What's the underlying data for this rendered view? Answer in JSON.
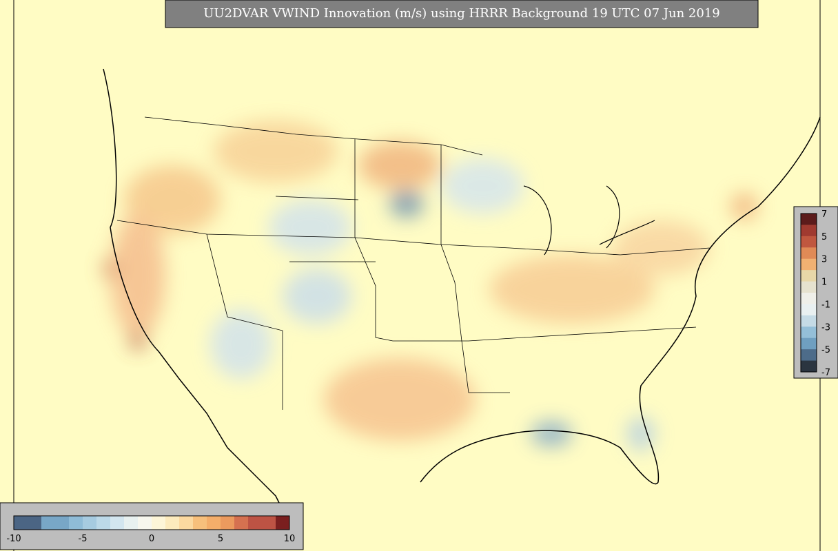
{
  "title": "UU2DVAR VWIND Innovation (m/s) using HRRR Background 19 UTC 07 Jun 2019",
  "colorbar_bottom": {
    "ticks": [
      "-10",
      "-5",
      "0",
      "5",
      "10"
    ],
    "colors": [
      "#4b6584",
      "#4b6584",
      "#78a7c7",
      "#78a7c7",
      "#8fbcd7",
      "#a6cbe0",
      "#bcd9e8",
      "#d3e6ef",
      "#e8f1f0",
      "#f7f7ee",
      "#fdf6d8",
      "#fcebbd",
      "#fbd9a0",
      "#f7c07c",
      "#f4ae6a",
      "#eb9a5e",
      "#d57150",
      "#bd5344",
      "#bd5344",
      "#7a1f1f"
    ]
  },
  "colorbar_right": {
    "ticks": [
      "7",
      "5",
      "3",
      "1",
      "-1",
      "-3",
      "-5",
      "-7"
    ],
    "colors": [
      "#5c1b1b",
      "#a03a30",
      "#c0573f",
      "#e08a56",
      "#f1b172",
      "#e8d7a8",
      "#e6e2cf",
      "#efefe9",
      "#e9f0f1",
      "#c5dbe6",
      "#94bfd8",
      "#6f9fc0",
      "#4d6c8a",
      "#2b3540"
    ]
  }
}
